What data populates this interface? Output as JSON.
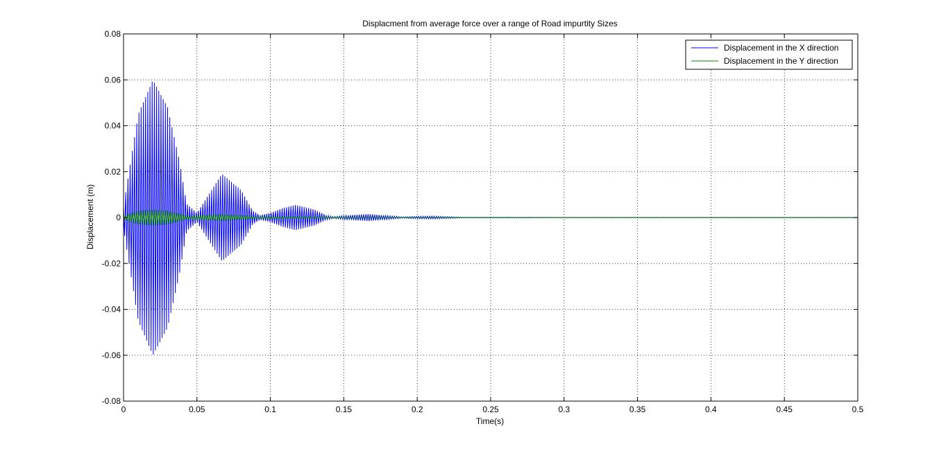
{
  "chart_data": {
    "type": "line",
    "title": "Displacment from average force over a range of Road impurtity Sizes",
    "xlabel": "Time(s)",
    "ylabel": "Displacement (m)",
    "xlim": [
      0,
      0.5
    ],
    "ylim": [
      -0.08,
      0.08
    ],
    "xticks": [
      0,
      0.05,
      0.1,
      0.15,
      0.2,
      0.25,
      0.3,
      0.35,
      0.4,
      0.45,
      0.5
    ],
    "xtick_labels": [
      "0",
      "0.05",
      "0.1",
      "0.15",
      "0.2",
      "0.25",
      "0.3",
      "0.35",
      "0.4",
      "0.45",
      "0.5"
    ],
    "yticks": [
      -0.08,
      -0.06,
      -0.04,
      -0.02,
      0,
      0.02,
      0.04,
      0.06,
      0.08
    ],
    "ytick_labels": [
      "-0.08",
      "-0.06",
      "-0.04",
      "-0.02",
      "0",
      "0.02",
      "0.04",
      "0.06",
      "0.08"
    ],
    "grid": true,
    "legend_position": "top-right",
    "series": [
      {
        "name": "Displacement in the X direction",
        "color": "#0000ff",
        "oscillation_period": 0.0015,
        "envelope": {
          "x": [
            0,
            0.01,
            0.02,
            0.03,
            0.038,
            0.043,
            0.05,
            0.058,
            0.067,
            0.08,
            0.088,
            0.093,
            0.1,
            0.108,
            0.117,
            0.13,
            0.138,
            0.143,
            0.15,
            0.158,
            0.167,
            0.18,
            0.19,
            0.2,
            0.21,
            0.22,
            0.23,
            0.25,
            0.3,
            0.5
          ],
          "y": [
            0.005,
            0.045,
            0.06,
            0.048,
            0.025,
            0.006,
            0.002,
            0.01,
            0.019,
            0.012,
            0.003,
            0.001,
            0.002,
            0.004,
            0.0055,
            0.0035,
            0.001,
            0.0004,
            0.0008,
            0.0012,
            0.0015,
            0.0008,
            0.0003,
            0.0005,
            0.0006,
            0.0004,
            0.0002,
            0.0002,
            0.0001,
            0.0001
          ]
        }
      },
      {
        "name": "Displacement in the Y direction",
        "color": "#008000",
        "oscillation_period": 0.0015,
        "envelope": {
          "x": [
            0,
            0.01,
            0.02,
            0.03,
            0.04,
            0.045,
            0.055,
            0.067,
            0.08,
            0.09,
            0.1,
            0.12,
            0.15,
            0.2,
            0.5
          ],
          "y": [
            0.001,
            0.003,
            0.0035,
            0.003,
            0.0015,
            0.0005,
            0.0012,
            0.0015,
            0.001,
            0.0003,
            0.0004,
            0.0004,
            0.0002,
            0.0001,
            0.0001
          ]
        }
      }
    ]
  }
}
